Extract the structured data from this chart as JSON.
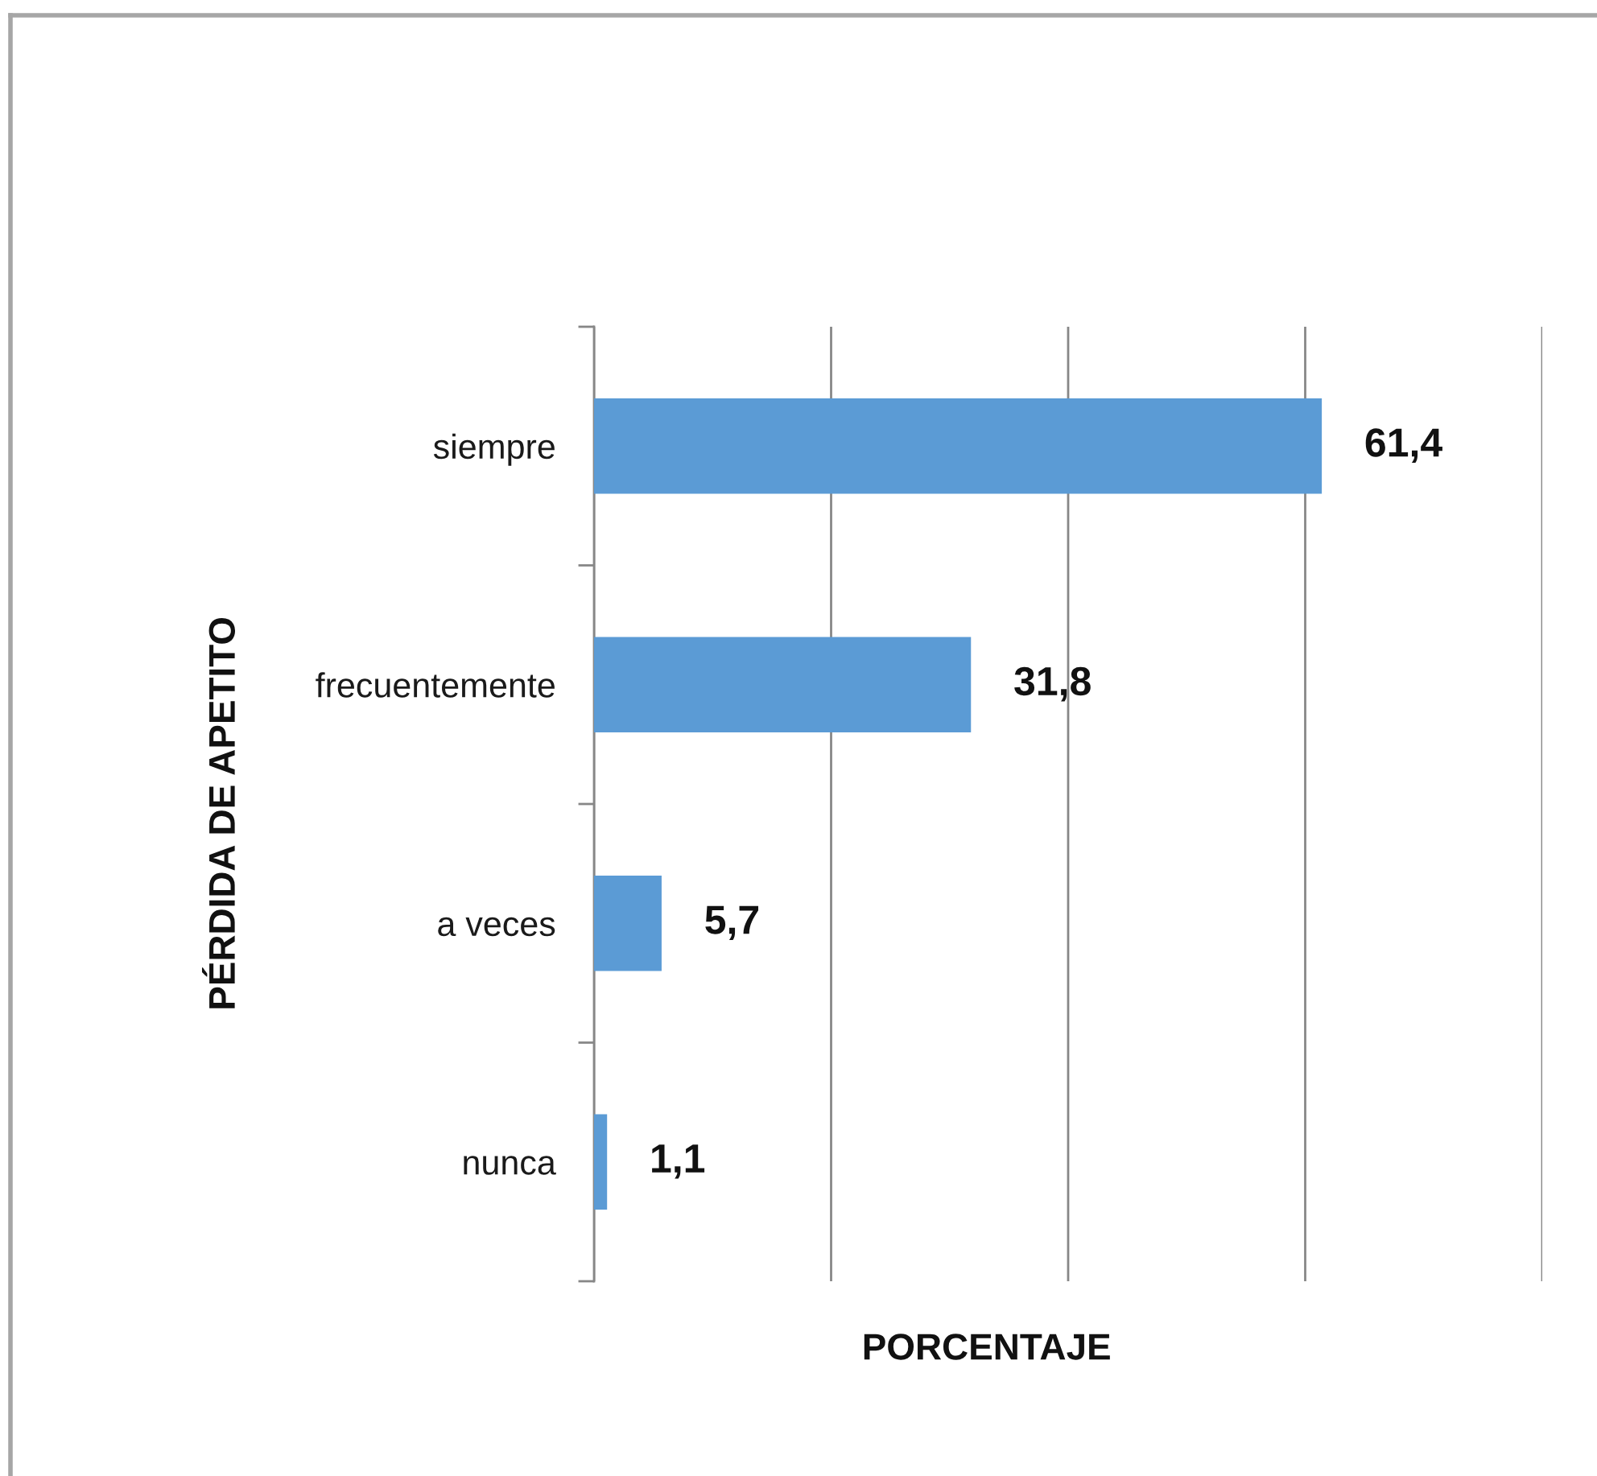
{
  "chart_data": {
    "type": "bar",
    "orientation": "horizontal",
    "xlabel": "PORCENTAJE",
    "ylabel": "PÉRDIDA DE APETITO",
    "categories": [
      "siempre",
      "frecuentemente",
      "a veces",
      "nunca"
    ],
    "values": [
      61.4,
      31.8,
      5.7,
      1.1
    ],
    "value_labels": [
      "61,4",
      "31,8",
      "5,7",
      "1,1"
    ],
    "color": "#5b9bd5",
    "xlim": [
      0,
      80
    ],
    "xticks": [
      0,
      20,
      40,
      60,
      80
    ],
    "grid": "x",
    "tick_labels": "y"
  }
}
